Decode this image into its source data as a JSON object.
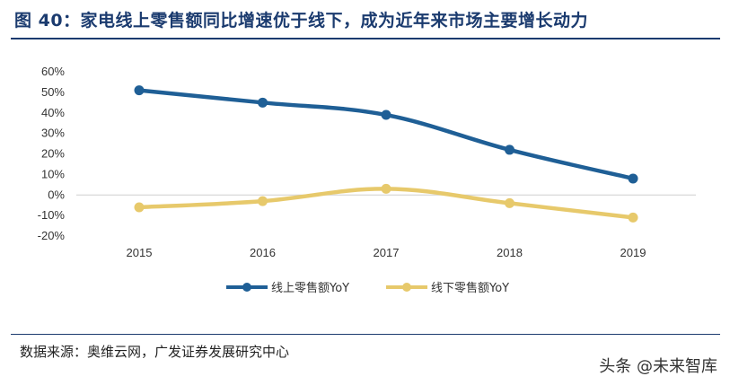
{
  "title": "图 40：家电线上零售额同比增速优于线下，成为近年来市场主要增长动力",
  "source": "数据来源：奥维云网，广发证券发展研究中心",
  "watermark": "头条 @未来智库",
  "chart_data": {
    "type": "line",
    "x": [
      "2015",
      "2016",
      "2017",
      "2018",
      "2019"
    ],
    "ylim": [
      -20,
      60
    ],
    "yticks": [
      60,
      50,
      40,
      30,
      20,
      10,
      0,
      -10,
      -20
    ],
    "ytick_labels": [
      "60%",
      "50%",
      "40%",
      "30%",
      "20%",
      "10%",
      "0%",
      "-10%",
      "-20%"
    ],
    "series": [
      {
        "name": "线上零售额YoY",
        "values": [
          51,
          45,
          39,
          22,
          8
        ],
        "color": "#1f5f96"
      },
      {
        "name": "线下零售额YoY",
        "values": [
          -6,
          -3,
          3,
          -4,
          -11
        ],
        "color": "#e7c96b"
      }
    ],
    "legend_position": "bottom-center",
    "grid": false
  }
}
